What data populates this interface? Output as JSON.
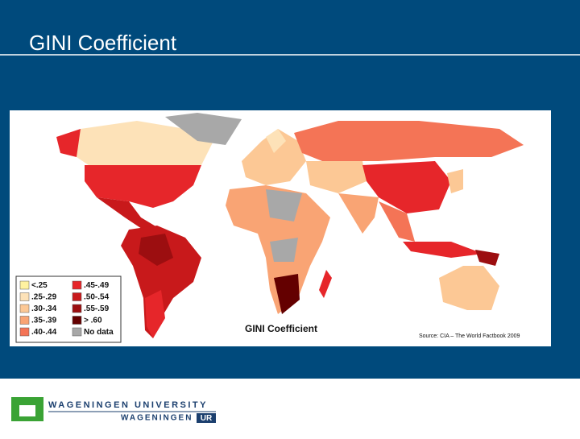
{
  "slide": {
    "title": "GINI Coefficient"
  },
  "map": {
    "caption": "GINI  Coefficient",
    "source": "Source:  CIA – The World Factbook 2009",
    "legend": [
      {
        "label": "<.25",
        "color": "#fff2a0"
      },
      {
        "label": ".25-.29",
        "color": "#fde2b8"
      },
      {
        "label": ".30-.34",
        "color": "#fcc895"
      },
      {
        "label": ".35-.39",
        "color": "#f9a474"
      },
      {
        "label": ".40-.44",
        "color": "#f47456"
      },
      {
        "label": ".45-.49",
        "color": "#e6262a"
      },
      {
        "label": ".50-.54",
        "color": "#c8191b"
      },
      {
        "label": ".55-.59",
        "color": "#9c0e10"
      },
      {
        "label": "> .60",
        "color": "#640000"
      },
      {
        "label": "No data",
        "color": "#a8a8a8"
      }
    ]
  },
  "footer": {
    "logo_top": "WAGENINGEN UNIVERSITY",
    "logo_bottom": "WAGENINGEN",
    "logo_box": "UR"
  }
}
